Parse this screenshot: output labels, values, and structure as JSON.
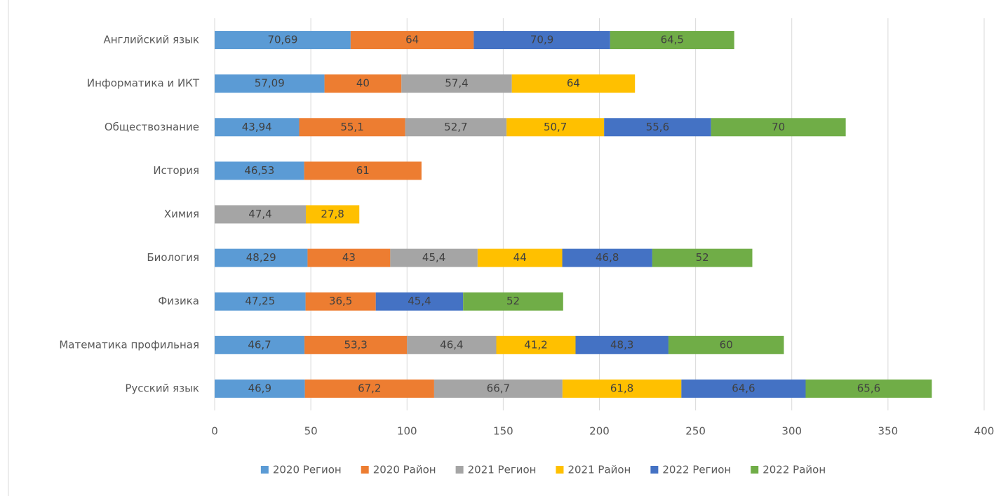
{
  "chart_data": {
    "type": "stacked-bar-horizontal",
    "categories": [
      "Английский  язык",
      "Информатика и ИКТ",
      "Обществознание",
      "История",
      "Химия",
      "Биология",
      "Физика",
      "Математика профильная",
      "Русский язык"
    ],
    "series": [
      {
        "name": "2020 Регион",
        "color": "#5b9bd5",
        "values": [
          70.69,
          57.09,
          43.94,
          46.53,
          null,
          48.29,
          47.25,
          46.7,
          46.9
        ],
        "value_labels": [
          "70,69",
          "57,09",
          "43,94",
          "46,53",
          null,
          "48,29",
          "47,25",
          "46,7",
          "46,9"
        ]
      },
      {
        "name": "2020 Район",
        "color": "#ed7d31",
        "values": [
          64,
          40,
          55.1,
          61,
          null,
          43,
          36.5,
          53.3,
          67.2
        ],
        "value_labels": [
          "64",
          "40",
          "55,1",
          "61",
          null,
          "43",
          "36,5",
          "53,3",
          "67,2"
        ]
      },
      {
        "name": "2021 Регион",
        "color": "#a5a5a5",
        "values": [
          null,
          57.4,
          52.7,
          null,
          47.4,
          45.4,
          null,
          46.4,
          66.7
        ],
        "value_labels": [
          null,
          "57,4",
          "52,7",
          null,
          "47,4",
          "45,4",
          null,
          "46,4",
          "66,7"
        ]
      },
      {
        "name": "2021 Район",
        "color": "#ffc000",
        "values": [
          null,
          64,
          50.7,
          null,
          27.8,
          44,
          null,
          41.2,
          61.8
        ],
        "value_labels": [
          null,
          "64",
          "50,7",
          null,
          "27,8",
          "44",
          null,
          "41,2",
          "61,8"
        ]
      },
      {
        "name": "2022 Регион",
        "color": "#4472c4",
        "values": [
          70.9,
          null,
          55.6,
          null,
          null,
          46.8,
          45.4,
          48.3,
          64.6
        ],
        "value_labels": [
          "70,9",
          null,
          "55,6",
          null,
          null,
          "46,8",
          "45,4",
          "48,3",
          "64,6"
        ]
      },
      {
        "name": "2022 Район",
        "color": "#70ad47",
        "values": [
          64.5,
          null,
          70,
          null,
          null,
          52,
          52,
          60,
          65.6
        ],
        "value_labels": [
          "64,5",
          null,
          "70",
          null,
          null,
          "52",
          "52",
          "60",
          "65,6"
        ]
      }
    ],
    "xlim": [
      0,
      400
    ],
    "xticks": [
      0,
      50,
      100,
      150,
      200,
      250,
      300,
      350,
      400
    ],
    "grid": true,
    "legend": "bottom"
  }
}
